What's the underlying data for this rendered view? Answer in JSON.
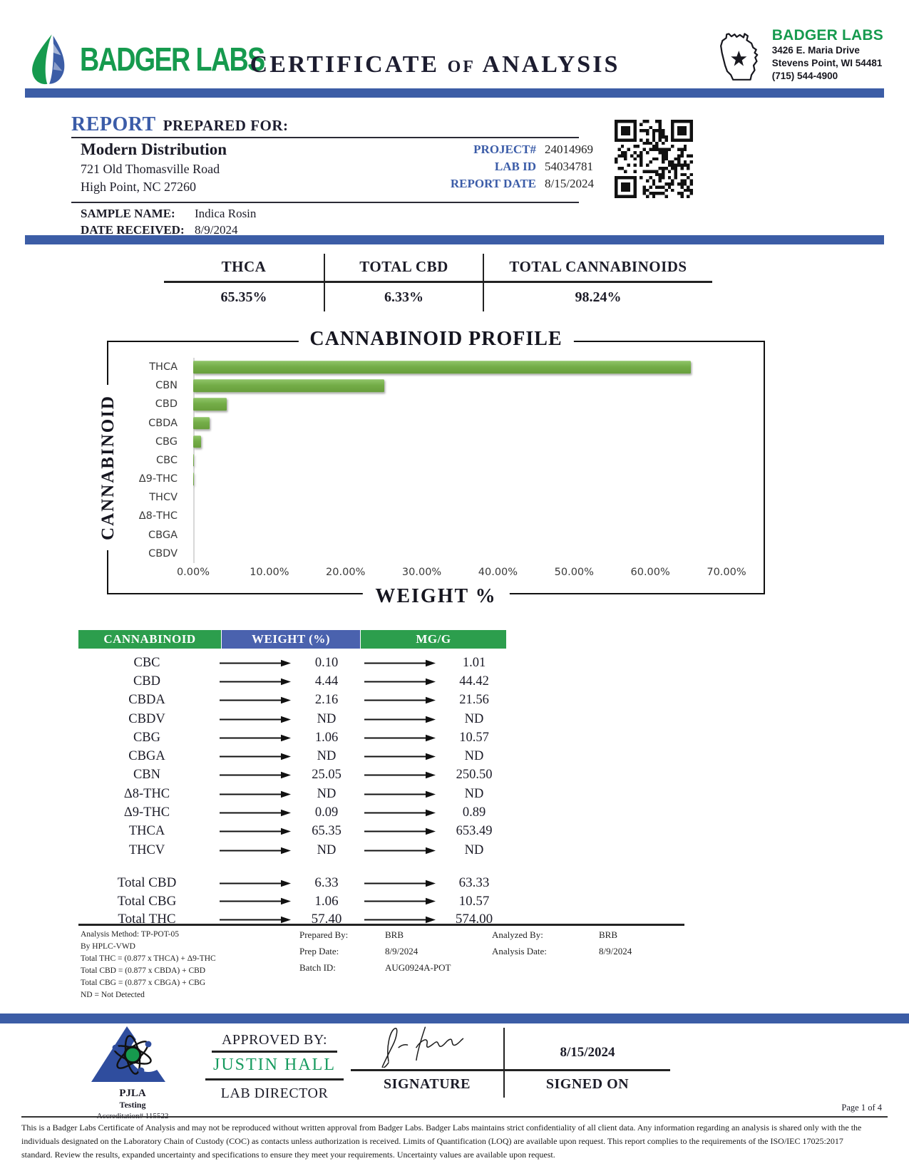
{
  "header": {
    "brand": "BADGER LABS",
    "title": "CERTIFICATE of ANALYSIS",
    "lab_name": "BADGER LABS",
    "address_line1": "3426 E. Maria Drive",
    "address_line2": "Stevens Point, WI 54481",
    "phone": "(715) 544-4900"
  },
  "report": {
    "heading_primary": "REPORT",
    "heading_secondary": "PREPARED FOR:",
    "client": {
      "name": "Modern Distribution",
      "address1": "721 Old Thomasville Road",
      "address2": "High Point, NC 27260"
    },
    "meta": [
      {
        "label": "PROJECT#",
        "value": "24014969"
      },
      {
        "label": "LAB ID",
        "value": "54034781"
      },
      {
        "label": "REPORT DATE",
        "value": "8/15/2024"
      }
    ],
    "sample_name_label": "SAMPLE NAME:",
    "sample_name": "Indica Rosin",
    "date_received_label": "DATE RECEIVED:",
    "date_received": "8/9/2024"
  },
  "summary": [
    {
      "label": "THCA",
      "value": "65.35%"
    },
    {
      "label": "TOTAL CBD",
      "value": "6.33%"
    },
    {
      "label": "TOTAL CANNABINOIDS",
      "value": "98.24%"
    }
  ],
  "chart_data": {
    "type": "bar",
    "orientation": "horizontal",
    "title": "CANNABINOID PROFILE",
    "xlabel": "WEIGHT %",
    "ylabel": "CANNABINOID",
    "categories": [
      "THCA",
      "CBN",
      "CBD",
      "CBDA",
      "CBG",
      "CBC",
      "Δ9-THC",
      "THCV",
      "Δ8-THC",
      "CBGA",
      "CBDV"
    ],
    "values": [
      65.35,
      25.05,
      4.44,
      2.16,
      1.06,
      0.1,
      0.09,
      null,
      null,
      null,
      null
    ],
    "xlim": [
      0,
      70
    ],
    "x_ticks": [
      "0.00%",
      "10.00%",
      "20.00%",
      "30.00%",
      "40.00%",
      "50.00%",
      "60.00%",
      "70.00%"
    ],
    "bar_color": "#74ad48",
    "legend": false,
    "grid": false
  },
  "table": {
    "headers": [
      "CANNABINOID",
      "WEIGHT (%)",
      "MG/G"
    ],
    "rows": [
      [
        "CBC",
        "0.10",
        "1.01"
      ],
      [
        "CBD",
        "4.44",
        "44.42"
      ],
      [
        "CBDA",
        "2.16",
        "21.56"
      ],
      [
        "CBDV",
        "ND",
        "ND"
      ],
      [
        "CBG",
        "1.06",
        "10.57"
      ],
      [
        "CBGA",
        "ND",
        "ND"
      ],
      [
        "CBN",
        "25.05",
        "250.50"
      ],
      [
        "Δ8-THC",
        "ND",
        "ND"
      ],
      [
        "Δ9-THC",
        "0.09",
        "0.89"
      ],
      [
        "THCA",
        "65.35",
        "653.49"
      ],
      [
        "THCV",
        "ND",
        "ND"
      ]
    ],
    "totals": [
      [
        "Total CBD",
        "6.33",
        "63.33"
      ],
      [
        "Total CBG",
        "1.06",
        "10.57"
      ],
      [
        "Total THC",
        "57.40",
        "574.00"
      ]
    ]
  },
  "analysis": {
    "left_lines": [
      "Analysis Method: TP-POT-05",
      "By HPLC-VWD",
      "Total THC = (0.877 x  THCA) + Δ9-THC",
      "Total CBD = (0.877 x  CBDA) + CBD",
      "Total CBG = (0.877 x  CBGA) + CBG",
      "ND = Not Detected"
    ],
    "prepared_by_label": "Prepared By:",
    "prepared_by": "BRB",
    "prep_date_label": "Prep Date:",
    "prep_date": "8/9/2024",
    "batch_id_label": "Batch ID:",
    "batch_id": "AUG0924A-POT",
    "analyzed_by_label": "Analyzed By:",
    "analyzed_by": "BRB",
    "analysis_date_label": "Analysis Date:",
    "analysis_date": "8/9/2024"
  },
  "footer": {
    "approved_by_label": "APPROVED BY:",
    "approver": "JUSTIN HALL",
    "approver_title": "LAB DIRECTOR",
    "signature_label": "SIGNATURE",
    "signed_on_date": "8/15/2024",
    "signed_on_label": "SIGNED ON",
    "pjla_line1": "PJLA",
    "pjla_line2": "Testing",
    "accreditation": "Accreditation# 115522",
    "page": "Page 1 of 4",
    "disclaimer_lines": [
      "This is a Badger Labs Certificate of Analysis and may not be reproduced without written approval from Badger Labs. Badger Labs maintains strict confidentiality of all client data. Any information regarding an analysis is shared only with the the",
      "individuals designated on the Laboratory Chain of Custody (COC) as contacts unless authorization is received. Limits of Quantification (LOQ) are available upon request. This report complies to the requirements of the ISO/IEC 17025:2017",
      "standard. Review the results, expanded uncertainty and specifications to ensure they meet your requirements. Uncertainty values are available upon request."
    ]
  },
  "colors": {
    "band_blue": "#3c5da6",
    "brand_green": "#169a4e",
    "accent_blue_text": "#3b5ca8",
    "table_header_green": "#2c9e4d",
    "table_header_blue": "#4a62ae",
    "bar_green": "#74ad48",
    "approver_green": "#169a5e"
  }
}
